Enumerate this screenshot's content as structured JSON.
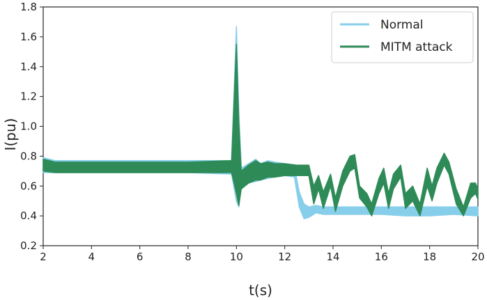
{
  "chart_data": {
    "type": "line",
    "title": "",
    "xlabel": "t(s)",
    "ylabel": "I(pu)",
    "xlim": [
      2,
      20
    ],
    "ylim": [
      0.2,
      1.8
    ],
    "xticks": [
      "2",
      "4",
      "6",
      "8",
      "10",
      "12",
      "14",
      "16",
      "18",
      "20"
    ],
    "yticks": [
      "0.2",
      "0.4",
      "0.6",
      "0.8",
      "1.0",
      "1.2",
      "1.4",
      "1.6",
      "1.8"
    ],
    "grid": false,
    "legend_position": "top-right",
    "series": [
      {
        "name": "Normal",
        "color": "#87ceeb",
        "band": [
          [
            2.0,
            0.69,
            0.79
          ],
          [
            2.5,
            0.69,
            0.77
          ],
          [
            4.0,
            0.69,
            0.77
          ],
          [
            6.0,
            0.69,
            0.77
          ],
          [
            8.0,
            0.69,
            0.77
          ],
          [
            9.8,
            0.68,
            0.77
          ],
          [
            10.0,
            0.5,
            1.67
          ],
          [
            10.1,
            0.46,
            1.1
          ],
          [
            10.2,
            0.6,
            0.72
          ],
          [
            10.5,
            0.62,
            0.75
          ],
          [
            10.8,
            0.63,
            0.78
          ],
          [
            11.0,
            0.64,
            0.75
          ],
          [
            11.3,
            0.65,
            0.77
          ],
          [
            11.6,
            0.66,
            0.76
          ],
          [
            12.0,
            0.67,
            0.75
          ],
          [
            12.4,
            0.66,
            0.73
          ],
          [
            12.6,
            0.46,
            0.56
          ],
          [
            12.8,
            0.38,
            0.48
          ],
          [
            13.0,
            0.39,
            0.46
          ],
          [
            13.3,
            0.42,
            0.47
          ],
          [
            13.6,
            0.41,
            0.46
          ],
          [
            14.0,
            0.41,
            0.46
          ],
          [
            15.0,
            0.41,
            0.46
          ],
          [
            16.0,
            0.41,
            0.46
          ],
          [
            17.0,
            0.4,
            0.46
          ],
          [
            18.0,
            0.4,
            0.46
          ],
          [
            19.0,
            0.41,
            0.46
          ],
          [
            20.0,
            0.4,
            0.46
          ]
        ]
      },
      {
        "name": "MITM attack",
        "color": "#2e8b57",
        "band": [
          [
            2.0,
            0.7,
            0.78
          ],
          [
            2.5,
            0.69,
            0.76
          ],
          [
            4.0,
            0.69,
            0.76
          ],
          [
            6.0,
            0.69,
            0.76
          ],
          [
            8.0,
            0.69,
            0.76
          ],
          [
            9.8,
            0.69,
            0.77
          ],
          [
            10.0,
            0.55,
            1.55
          ],
          [
            10.1,
            0.47,
            1.02
          ],
          [
            10.2,
            0.58,
            0.7
          ],
          [
            10.5,
            0.62,
            0.74
          ],
          [
            10.8,
            0.64,
            0.77
          ],
          [
            11.0,
            0.64,
            0.75
          ],
          [
            11.3,
            0.66,
            0.76
          ],
          [
            11.6,
            0.66,
            0.75
          ],
          [
            12.0,
            0.67,
            0.75
          ],
          [
            12.5,
            0.67,
            0.74
          ],
          [
            13.0,
            0.67,
            0.74
          ],
          [
            13.2,
            0.48,
            0.6
          ],
          [
            13.4,
            0.58,
            0.67
          ],
          [
            13.6,
            0.45,
            0.56
          ],
          [
            13.9,
            0.6,
            0.68
          ],
          [
            14.1,
            0.43,
            0.52
          ],
          [
            14.4,
            0.6,
            0.7
          ],
          [
            14.7,
            0.7,
            0.8
          ],
          [
            14.9,
            0.72,
            0.81
          ],
          [
            15.1,
            0.52,
            0.6
          ],
          [
            15.4,
            0.46,
            0.55
          ],
          [
            15.6,
            0.4,
            0.48
          ],
          [
            15.9,
            0.55,
            0.65
          ],
          [
            16.1,
            0.62,
            0.72
          ],
          [
            16.3,
            0.45,
            0.55
          ],
          [
            16.5,
            0.58,
            0.68
          ],
          [
            16.8,
            0.66,
            0.74
          ],
          [
            17.0,
            0.45,
            0.55
          ],
          [
            17.3,
            0.5,
            0.6
          ],
          [
            17.6,
            0.4,
            0.48
          ],
          [
            17.9,
            0.6,
            0.72
          ],
          [
            18.1,
            0.5,
            0.6
          ],
          [
            18.3,
            0.62,
            0.72
          ],
          [
            18.6,
            0.74,
            0.82
          ],
          [
            18.8,
            0.68,
            0.76
          ],
          [
            19.1,
            0.48,
            0.58
          ],
          [
            19.4,
            0.4,
            0.46
          ],
          [
            19.7,
            0.52,
            0.62
          ],
          [
            19.9,
            0.55,
            0.62
          ],
          [
            20.0,
            0.51,
            0.58
          ]
        ]
      }
    ]
  }
}
